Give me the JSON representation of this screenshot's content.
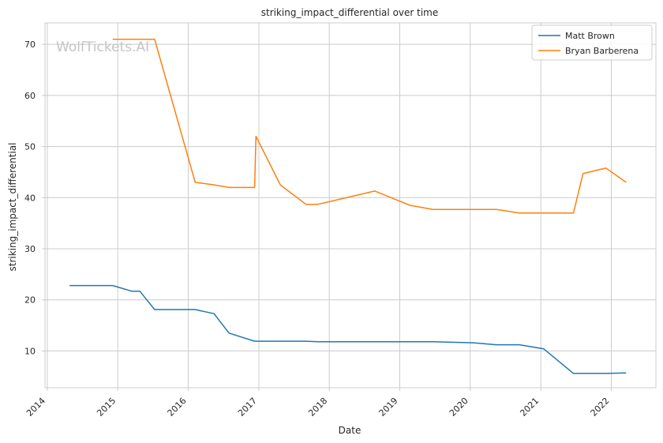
{
  "chart_data": {
    "type": "line",
    "title": "striking_impact_differential over time",
    "xlabel": "Date",
    "ylabel": "striking_impact_differential",
    "watermark": "WolfTickets.AI",
    "x_tick_labels": [
      "2014",
      "2015",
      "2016",
      "2017",
      "2018",
      "2019",
      "2020",
      "2021",
      "2022"
    ],
    "y_tick_labels": [
      "10",
      "20",
      "30",
      "40",
      "50",
      "60",
      "70"
    ],
    "y_ticks": [
      10,
      20,
      30,
      40,
      50,
      60,
      70
    ],
    "xlim": [
      "2013-12-20",
      "2022-08-20"
    ],
    "ylim": [
      2.8,
      74.2
    ],
    "grid": true,
    "legend_position": "top-right",
    "series": [
      {
        "name": "Matt Brown",
        "color": "#1f77b4",
        "points": [
          [
            "2014-04-26",
            22.8
          ],
          [
            "2014-12-06",
            22.8
          ],
          [
            "2015-03-14",
            21.7
          ],
          [
            "2015-04-25",
            21.7
          ],
          [
            "2015-07-11",
            18.1
          ],
          [
            "2016-02-06",
            18.1
          ],
          [
            "2016-05-14",
            17.3
          ],
          [
            "2016-07-30",
            13.5
          ],
          [
            "2016-12-10",
            11.9
          ],
          [
            "2017-09-02",
            11.9
          ],
          [
            "2017-11-04",
            11.8
          ],
          [
            "2019-06-22",
            11.8
          ],
          [
            "2020-01-18",
            11.6
          ],
          [
            "2020-05-16",
            11.2
          ],
          [
            "2020-09-12",
            11.2
          ],
          [
            "2021-01-16",
            10.4
          ],
          [
            "2021-06-19",
            5.6
          ],
          [
            "2021-12-04",
            5.6
          ],
          [
            "2022-03-19",
            5.7
          ]
        ]
      },
      {
        "name": "Bryan Barberena",
        "color": "#ff7f0e",
        "points": [
          [
            "2014-12-06",
            71.0
          ],
          [
            "2015-07-11",
            71.0
          ],
          [
            "2016-02-06",
            43.0
          ],
          [
            "2016-05-14",
            42.5
          ],
          [
            "2016-07-30",
            42.0
          ],
          [
            "2016-12-10",
            42.0
          ],
          [
            "2016-12-17",
            52.0
          ],
          [
            "2017-04-22",
            42.5
          ],
          [
            "2017-09-02",
            38.7
          ],
          [
            "2017-11-04",
            38.7
          ],
          [
            "2018-08-25",
            41.3
          ],
          [
            "2019-02-23",
            38.5
          ],
          [
            "2019-06-22",
            37.7
          ],
          [
            "2020-05-16",
            37.7
          ],
          [
            "2020-09-12",
            37.0
          ],
          [
            "2021-06-19",
            37.0
          ],
          [
            "2021-08-07",
            44.7
          ],
          [
            "2021-12-04",
            45.8
          ],
          [
            "2022-03-19",
            43.0
          ]
        ]
      }
    ]
  }
}
